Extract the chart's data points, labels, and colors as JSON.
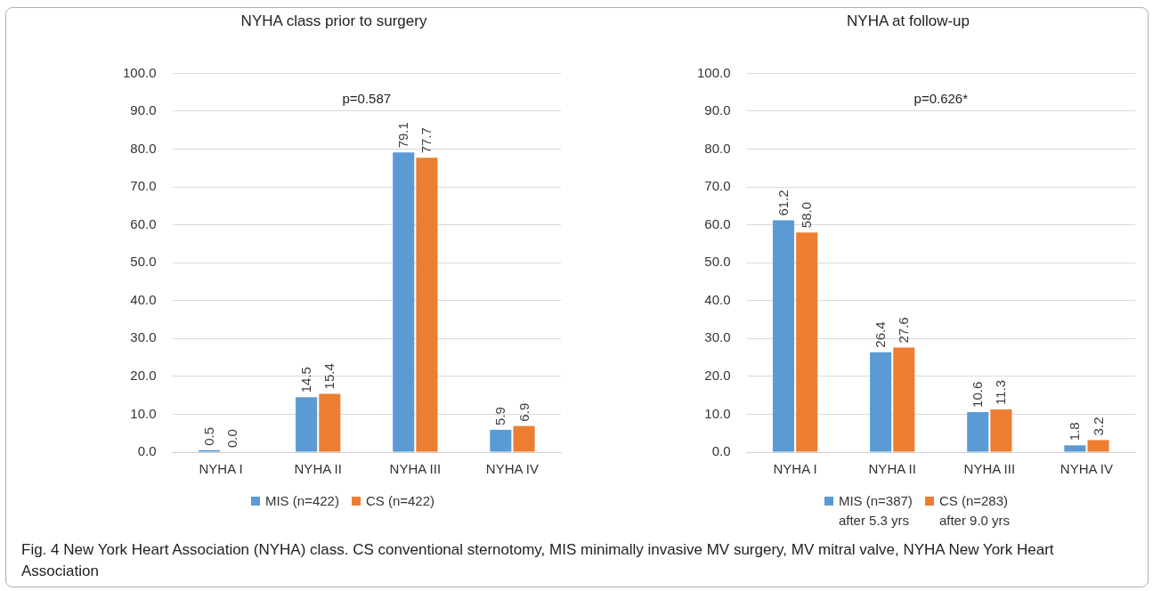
{
  "chart_data": [
    {
      "type": "bar",
      "title": "NYHA class prior to surgery",
      "categories": [
        "NYHA I",
        "NYHA II",
        "NYHA III",
        "NYHA IV"
      ],
      "series": [
        {
          "name": "MIS (n=422)",
          "color": "#5b9bd5",
          "values": [
            0.5,
            14.5,
            79.1,
            5.9
          ],
          "value_labels": [
            "0.5",
            "14.5",
            "79.1",
            "5.9"
          ]
        },
        {
          "name": "CS (n=422)",
          "color": "#ed7d31",
          "values": [
            0.0,
            15.4,
            77.7,
            6.9
          ],
          "value_labels": [
            "0.0",
            "15.4",
            "77.7",
            "6.9"
          ]
        }
      ],
      "ylim": [
        0,
        100
      ],
      "yticks": [
        {
          "value": 0,
          "label": "0.0"
        },
        {
          "value": 10,
          "label": "10.0"
        },
        {
          "value": 20,
          "label": "20.0"
        },
        {
          "value": 30,
          "label": "30.0"
        },
        {
          "value": 40,
          "label": "40.0"
        },
        {
          "value": 50,
          "label": "50.0"
        },
        {
          "value": 60,
          "label": "60.0"
        },
        {
          "value": 70,
          "label": "70.0"
        },
        {
          "value": 80,
          "label": "80.0"
        },
        {
          "value": 90,
          "label": "90.0"
        },
        {
          "value": 100,
          "label": "100.0"
        }
      ],
      "grid": "y",
      "legend": "bottom",
      "annotations": [
        "p=0.587"
      ]
    },
    {
      "type": "bar",
      "title": "NYHA at follow-up",
      "categories": [
        "NYHA I",
        "NYHA II",
        "NYHA III",
        "NYHA IV"
      ],
      "series": [
        {
          "name": "MIS (n=387)\nafter 5.3 yrs",
          "color": "#5b9bd5",
          "values": [
            61.2,
            26.4,
            10.6,
            1.8
          ],
          "value_labels": [
            "61.2",
            "26.4",
            "10.6",
            "1.8"
          ]
        },
        {
          "name": "CS (n=283)\nafter 9.0 yrs",
          "color": "#ed7d31",
          "values": [
            58.0,
            27.6,
            11.3,
            3.2
          ],
          "value_labels": [
            "58.0",
            "27.6",
            "11.3",
            "3.2"
          ]
        }
      ],
      "ylim": [
        0,
        100
      ],
      "yticks": [
        {
          "value": 0,
          "label": "0.0"
        },
        {
          "value": 10,
          "label": "10.0"
        },
        {
          "value": 20,
          "label": "20.0"
        },
        {
          "value": 30,
          "label": "30.0"
        },
        {
          "value": 40,
          "label": "40.0"
        },
        {
          "value": 50,
          "label": "50.0"
        },
        {
          "value": 60,
          "label": "60.0"
        },
        {
          "value": 70,
          "label": "70.0"
        },
        {
          "value": 80,
          "label": "80.0"
        },
        {
          "value": 90,
          "label": "90.0"
        },
        {
          "value": 100,
          "label": "100.0"
        }
      ],
      "grid": "y",
      "legend": "bottom",
      "annotations": [
        "p=0.626*",
        "Fig. 4  New York Heart Association (NYHA) class. CS conventional sternotomy, MIS minimally invasive MV surgery, MV mitral valve, NYHA New York Heart Association"
      ]
    }
  ]
}
